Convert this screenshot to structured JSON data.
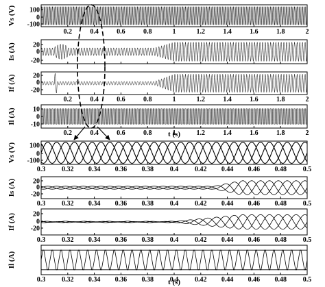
{
  "figure": {
    "top_panels": {
      "xlabel": "t (s)",
      "xlim": [
        0,
        2
      ],
      "xticks": [
        "0.2",
        "0.4",
        "0.6",
        "0.8",
        "1",
        "1.2",
        "1.4",
        "1.6",
        "1.8",
        "2"
      ]
    },
    "zoom_panels": {
      "xlabel": "t (s)",
      "xlim": [
        0.3,
        0.5
      ],
      "xticks": [
        "0.3",
        "0.32",
        "0.34",
        "0.36",
        "0.38",
        "0.4",
        "0.42",
        "0.44",
        "0.46",
        "0.48",
        "0.5"
      ]
    },
    "colors": {
      "line": "#000000",
      "highlight": "#000000",
      "background": "#ffffff"
    }
  },
  "chart_data": [
    {
      "type": "line",
      "ylabel": "Vs (V)",
      "xlim": [
        0,
        2
      ],
      "ylim": [
        -120,
        120
      ],
      "yticks": [
        "100",
        "0",
        "-100"
      ],
      "description_values": {
        "amplitude_V": 100,
        "frequency_Hz": 50
      }
    },
    {
      "type": "line",
      "ylabel": "Is (A)",
      "xlim": [
        0,
        2
      ],
      "ylim": [
        -25,
        25
      ],
      "yticks": [
        "20",
        "0",
        "-20"
      ],
      "description_values": {
        "amplitude_before_0.85s_A": 8,
        "amplitude_after_1s_A": 20
      }
    },
    {
      "type": "line",
      "ylabel": "If (A)",
      "xlim": [
        0,
        2
      ],
      "ylim": [
        -25,
        25
      ],
      "yticks": [
        "20",
        "0",
        "-20"
      ],
      "description_values": {
        "amplitude_before_0.85s_A": 4,
        "amplitude_after_1s_A": 20
      }
    },
    {
      "type": "line",
      "ylabel": "Il (A)",
      "xlim": [
        0,
        2
      ],
      "ylim": [
        -15,
        15
      ],
      "yticks": [
        "10",
        "0",
        "-10"
      ],
      "description_values": {
        "amplitude_A": 10
      }
    },
    {
      "type": "line",
      "ylabel": "Vs (V)",
      "xlim": [
        0.3,
        0.5
      ],
      "ylim": [
        -110,
        110
      ],
      "yticks": [
        "100",
        "0",
        "-100"
      ],
      "description_values": {
        "amplitude_V": 100,
        "frequency_Hz": 50,
        "phases": 3
      }
    },
    {
      "type": "line",
      "ylabel": "Is (A)",
      "xlim": [
        0.3,
        0.5
      ],
      "ylim": [
        -22,
        22
      ],
      "yticks": [
        "20",
        "0",
        "-20"
      ],
      "description_values": {
        "amplitude_before_0.43s_A": 3,
        "amplitude_after_0.45s_A": 14
      }
    },
    {
      "type": "line",
      "ylabel": "If (A)",
      "xlim": [
        0.3,
        0.5
      ],
      "ylim": [
        -25,
        25
      ],
      "yticks": [
        "20",
        "0",
        "-20"
      ],
      "description_values": {
        "amplitude_before_0.4s_A": 1,
        "amplitude_after_0.45s_A": 14
      }
    },
    {
      "type": "line",
      "ylabel": "Il (A)",
      "xlim": [
        0.3,
        0.5
      ],
      "ylim": [
        -15,
        15
      ],
      "yticks": [],
      "description_values": {
        "amplitude_A": 10,
        "waveform": "quasi-square"
      }
    }
  ]
}
